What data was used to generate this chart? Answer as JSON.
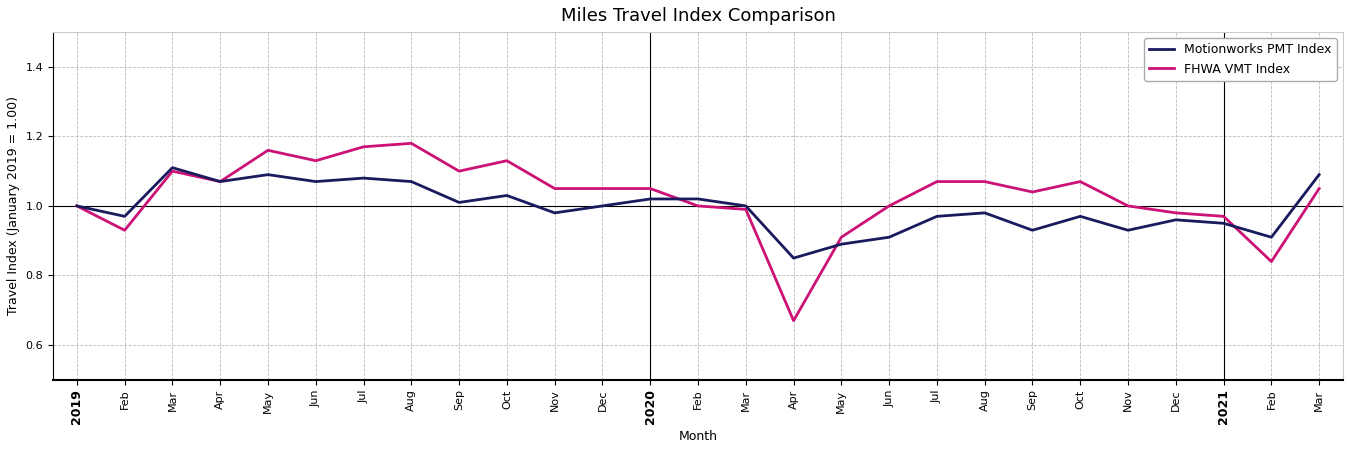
{
  "title": "Miles Travel Index Comparison",
  "xlabel": "Month",
  "ylabel": "Travel Index (January 2019 = 1.00)",
  "ylim": [
    0.5,
    1.5
  ],
  "yticks": [
    0.6,
    0.8,
    1.0,
    1.2,
    1.4
  ],
  "pmt_color": "#1a1a5e",
  "fhwa_color": "#cc1177",
  "pmt_label": "Motionworks PMT Index",
  "fhwa_label": "FHWA VMT Index",
  "vline_color": "black",
  "hline_color": "black",
  "x_tick_labels": [
    "2019",
    "Feb",
    "Mar",
    "Apr",
    "May",
    "Jun",
    "Jul",
    "Aug",
    "Sep",
    "Oct",
    "Nov",
    "Dec",
    "2020",
    "Feb",
    "Mar",
    "Apr",
    "May",
    "Jun",
    "Jul",
    "Aug",
    "Sep",
    "Oct",
    "Nov",
    "Dec",
    "2021",
    "Feb",
    "Mar"
  ],
  "pmt_values": [
    1.0,
    0.97,
    1.11,
    1.07,
    1.09,
    1.07,
    1.08,
    1.07,
    1.01,
    1.03,
    0.98,
    1.0,
    1.02,
    1.02,
    1.0,
    0.85,
    0.89,
    0.91,
    0.97,
    0.98,
    0.93,
    0.97,
    0.93,
    0.96,
    0.95,
    0.91,
    1.09
  ],
  "fhwa_values": [
    1.0,
    0.93,
    1.1,
    1.07,
    1.16,
    1.13,
    1.17,
    1.18,
    1.1,
    1.13,
    1.05,
    1.05,
    1.05,
    1.0,
    0.99,
    0.67,
    0.91,
    1.0,
    1.07,
    1.07,
    1.04,
    1.07,
    1.0,
    0.98,
    0.97,
    0.84,
    1.05
  ],
  "year_vlines": [
    12,
    24
  ],
  "year_tick_indices": [
    0,
    12,
    24
  ],
  "bg_color": "#ffffff",
  "grid_color": "#bbbbbb",
  "linewidth": 2.0,
  "title_fontsize": 13,
  "label_fontsize": 9,
  "tick_fontsize": 8,
  "legend_fontsize": 9
}
